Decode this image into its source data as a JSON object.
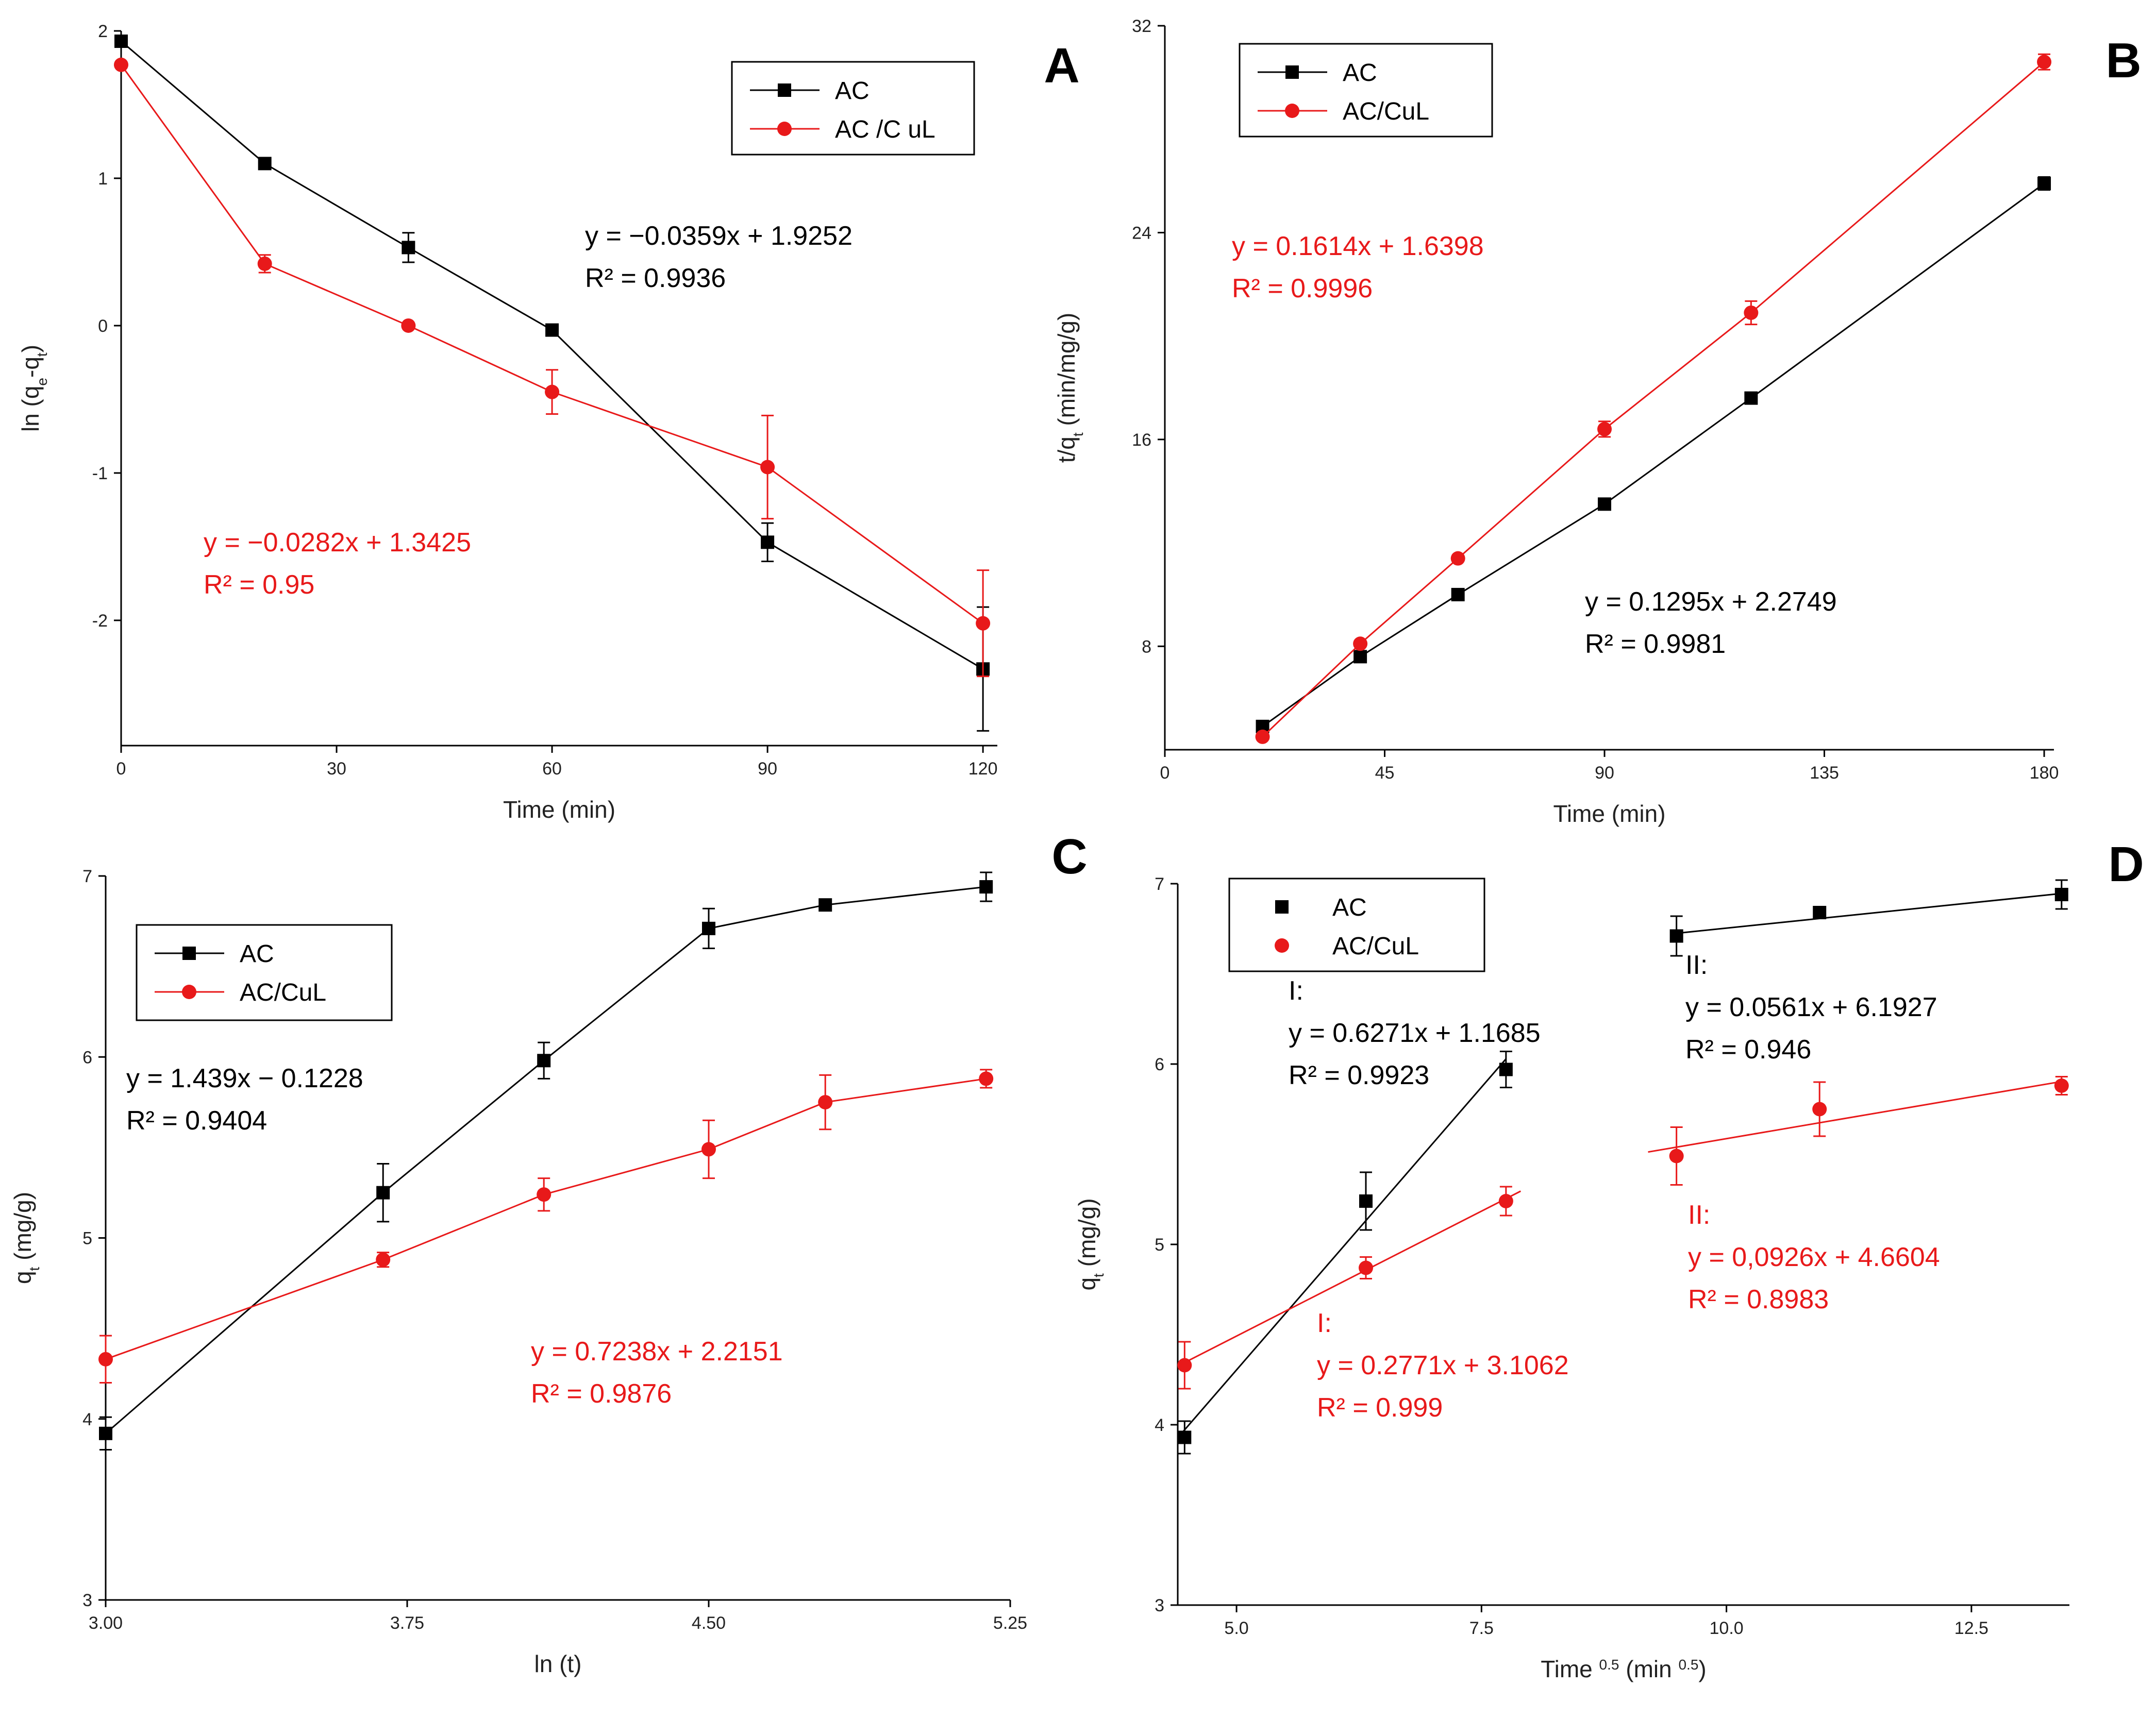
{
  "figure": {
    "colors": {
      "AC": "#000000",
      "AC/CuL": "#e8191a",
      "axis": "#000000"
    }
  },
  "chart_data": [
    {
      "panel": "A",
      "type": "line",
      "xlabel": "Time (min)",
      "ylabel": "ln (qe-qt)",
      "ylabel_parts": [
        "ln (q",
        "e",
        "-q",
        "t",
        ")"
      ],
      "xlim": [
        0,
        122
      ],
      "ylim": [
        -2.85,
        2.0
      ],
      "xticks": [
        0,
        30,
        60,
        90,
        120
      ],
      "xtick_labels": [
        "0",
        "30",
        "60",
        "90",
        "120"
      ],
      "yticks": [
        -2,
        -1,
        0,
        1,
        2
      ],
      "ytick_labels": [
        "-2",
        "-1",
        "0",
        "1",
        "2"
      ],
      "legend": [
        "AC",
        "AC /C uL"
      ],
      "series": [
        {
          "name": "AC",
          "color": "#000000",
          "marker": "square",
          "connect": "points",
          "x": [
            0,
            20,
            40,
            60,
            90,
            120
          ],
          "y": [
            1.93,
            1.1,
            0.53,
            -0.03,
            -1.47,
            -2.33
          ],
          "err": [
            0,
            0.03,
            0.1,
            0.03,
            0.13,
            0.42
          ]
        },
        {
          "name": "AC/CuL",
          "color": "#e8191a",
          "marker": "circle",
          "connect": "points",
          "x": [
            0,
            20,
            40,
            60,
            90,
            120
          ],
          "y": [
            1.77,
            0.42,
            0.0,
            -0.45,
            -0.96,
            -2.02
          ],
          "err": [
            0,
            0.06,
            0.02,
            0.15,
            0.35,
            0.36
          ]
        }
      ],
      "annotations": [
        {
          "lines": [
            "y = −0.0359x + 1.9252",
            "R² = 0.9936"
          ],
          "color": "#000000"
        },
        {
          "lines": [
            "y = −0.0282x + 1.3425",
            "R² = 0.95"
          ],
          "color": "#e8191a"
        }
      ]
    },
    {
      "panel": "B",
      "type": "line",
      "xlabel": "Time (min)",
      "ylabel": "t/qt (min/mg/g)",
      "ylabel_parts": [
        "t/q",
        "t",
        " (min/mg/g)"
      ],
      "xlim": [
        0,
        182
      ],
      "ylim": [
        4,
        32
      ],
      "xticks": [
        0,
        45,
        90,
        135,
        180
      ],
      "xtick_labels": [
        "0",
        "45",
        "90",
        "135",
        "180"
      ],
      "yticks": [
        8,
        16,
        24,
        32
      ],
      "ytick_labels": [
        "8",
        "16",
        "24",
        "32"
      ],
      "legend": [
        "AC",
        "AC/CuL"
      ],
      "series": [
        {
          "name": "AC",
          "color": "#000000",
          "marker": "square",
          "connect": "points",
          "x": [
            20,
            40,
            60,
            90,
            120,
            180
          ],
          "y": [
            4.9,
            7.6,
            10.0,
            13.5,
            17.6,
            25.9
          ],
          "err": [
            0,
            0,
            0,
            0,
            0,
            0.25
          ]
        },
        {
          "name": "AC/CuL",
          "color": "#e8191a",
          "marker": "circle",
          "connect": "points",
          "x": [
            20,
            40,
            60,
            90,
            120,
            180
          ],
          "y": [
            4.5,
            8.1,
            11.4,
            16.4,
            20.9,
            30.6
          ],
          "err": [
            0,
            0,
            0,
            0.3,
            0.45,
            0.3
          ]
        }
      ],
      "annotations": [
        {
          "lines": [
            "y = 0.1614x + 1.6398",
            "R² = 0.9996"
          ],
          "color": "#e8191a"
        },
        {
          "lines": [
            "y = 0.1295x + 2.2749",
            "R² = 0.9981"
          ],
          "color": "#000000"
        }
      ]
    },
    {
      "panel": "C",
      "type": "line",
      "xlabel": "ln (t)",
      "ylabel": "qt (mg/g)",
      "ylabel_parts": [
        "q",
        "t",
        " (mg/g)"
      ],
      "xlim": [
        3.0,
        5.25
      ],
      "ylim": [
        3,
        7
      ],
      "xticks": [
        3.0,
        3.75,
        4.5,
        5.25
      ],
      "xtick_labels": [
        "3.00",
        "3.75",
        "4.50",
        "5.25"
      ],
      "yticks": [
        3,
        4,
        5,
        6,
        7
      ],
      "ytick_labels": [
        "3",
        "4",
        "5",
        "6",
        "7"
      ],
      "legend": [
        "AC",
        "AC/CuL"
      ],
      "series": [
        {
          "name": "AC",
          "color": "#000000",
          "marker": "square",
          "connect": "points",
          "x": [
            3.0,
            3.69,
            4.09,
            4.5,
            4.79,
            5.19
          ],
          "y": [
            3.92,
            5.25,
            5.98,
            6.71,
            6.84,
            6.94
          ],
          "err": [
            0.09,
            0.16,
            0.1,
            0.11,
            0.02,
            0.08
          ]
        },
        {
          "name": "AC/CuL",
          "color": "#e8191a",
          "marker": "circle",
          "connect": "points",
          "x": [
            3.0,
            3.69,
            4.09,
            4.5,
            4.79,
            5.19
          ],
          "y": [
            4.33,
            4.88,
            5.24,
            5.49,
            5.75,
            5.88
          ],
          "err": [
            0.13,
            0.04,
            0.09,
            0.16,
            0.15,
            0.05
          ]
        }
      ],
      "annotations": [
        {
          "lines": [
            "y = 1.439x − 0.1228",
            "R² = 0.9404"
          ],
          "color": "#000000"
        },
        {
          "lines": [
            "y = 0.7238x + 2.2151",
            "R² = 0.9876"
          ],
          "color": "#e8191a"
        }
      ]
    },
    {
      "panel": "D",
      "type": "scatter",
      "xlabel": "Time 0.5 (min 0.5)",
      "xlabel_parts": [
        "Time ",
        "0.5",
        " (min ",
        "0.5",
        ")"
      ],
      "ylabel": "qt (mg/g)",
      "ylabel_parts": [
        "q",
        "t",
        " (mg/g)"
      ],
      "xlim": [
        4.4,
        13.5
      ],
      "ylim": [
        3,
        7
      ],
      "xticks": [
        5.0,
        7.5,
        10.0,
        12.5
      ],
      "xtick_labels": [
        "5.0",
        "7.5",
        "10.0",
        "12.5"
      ],
      "yticks": [
        3,
        4,
        5,
        6,
        7
      ],
      "ytick_labels": [
        "3",
        "4",
        "5",
        "6",
        "7"
      ],
      "legend": [
        "AC",
        "AC/CuL"
      ],
      "series": [
        {
          "name": "AC",
          "color": "#000000",
          "marker": "square",
          "x": [
            4.47,
            6.32,
            7.75,
            9.49,
            10.95,
            13.42
          ],
          "y": [
            3.93,
            5.24,
            5.97,
            6.71,
            6.84,
            6.94
          ],
          "err": [
            0.09,
            0.16,
            0.1,
            0.11,
            0.02,
            0.08
          ],
          "fits": [
            {
              "x": [
                4.4,
                7.75
              ],
              "slope": 0.6271,
              "intercept": 1.1685
            },
            {
              "x": [
                9.49,
                13.42
              ],
              "slope": 0.0561,
              "intercept": 6.1927
            }
          ]
        },
        {
          "name": "AC/CuL",
          "color": "#e8191a",
          "marker": "circle",
          "x": [
            4.47,
            6.32,
            7.75,
            9.49,
            10.95,
            13.42
          ],
          "y": [
            4.33,
            4.87,
            5.24,
            5.49,
            5.75,
            5.88
          ],
          "err": [
            0.13,
            0.06,
            0.08,
            0.16,
            0.15,
            0.05
          ],
          "fits": [
            {
              "x": [
                4.4,
                7.9
              ],
              "slope": 0.2771,
              "intercept": 3.1062
            },
            {
              "x": [
                9.2,
                13.42
              ],
              "slope": 0.0926,
              "intercept": 4.6604
            }
          ]
        }
      ],
      "annotations": [
        {
          "lines": [
            "I:",
            "y = 0.6271x + 1.1685",
            "R² = 0.9923"
          ],
          "color": "#000000"
        },
        {
          "lines": [
            "II:",
            "y = 0.0561x + 6.1927",
            "R² = 0.946"
          ],
          "color": "#000000"
        },
        {
          "lines": [
            "I:",
            "y = 0.2771x + 3.1062",
            "R² = 0.999"
          ],
          "color": "#e8191a"
        },
        {
          "lines": [
            "II:",
            "y = 0,0926x + 4.6604",
            "R² = 0.8983"
          ],
          "color": "#e8191a"
        }
      ]
    }
  ]
}
